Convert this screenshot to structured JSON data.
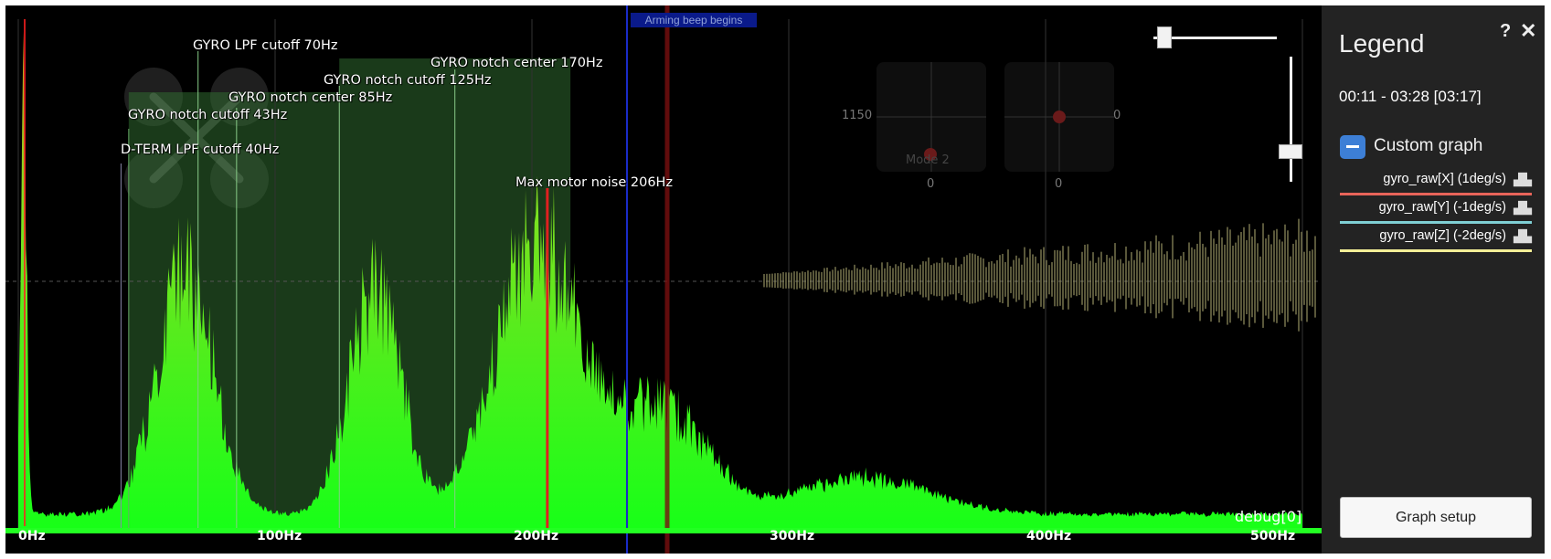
{
  "graph": {
    "annotations": [
      {
        "name": "gyro-lpf-cutoff-label",
        "text": "GYRO LPF cutoff 70Hz"
      },
      {
        "name": "gyro-notch-center-170-label",
        "text": "GYRO notch center 170Hz"
      },
      {
        "name": "gyro-notch-cutoff-125-label",
        "text": "GYRO notch cutoff 125Hz"
      },
      {
        "name": "gyro-notch-center-85-label",
        "text": "GYRO notch center 85Hz"
      },
      {
        "name": "gyro-notch-cutoff-43-label",
        "text": "GYRO notch cutoff 43Hz"
      },
      {
        "name": "dterm-lpf-cutoff-label",
        "text": "D-TERM LPF cutoff 40Hz"
      },
      {
        "name": "max-motor-noise-label",
        "text": "Max motor noise 206Hz"
      }
    ],
    "arming_label": "Arming beep begins",
    "debug_label": "debug[0]",
    "stick_values": {
      "left_top": "1150",
      "right_top": "0",
      "left_bottom": "0",
      "right_bottom": "0",
      "mode_label": "Mode 2"
    }
  },
  "chart_data": {
    "type": "area",
    "x_unit": "Hz",
    "x_ticks": [
      "0Hz",
      "100Hz",
      "200Hz",
      "300Hz",
      "400Hz",
      "500Hz"
    ],
    "xlim": [
      0,
      500
    ],
    "series": [
      {
        "name": "gyro_raw spectrum",
        "color": "#22ff22"
      }
    ],
    "peaks_hz": [
      2,
      65,
      139,
      202,
      250
    ],
    "markers_hz": {
      "dterm_lpf": 40,
      "gyro_notch_cutoff_1": 43,
      "gyro_lpf": 70,
      "gyro_notch_center_1": 85,
      "gyro_notch_cutoff_2": 125,
      "gyro_notch_center_2": 170,
      "max_motor_noise": 206
    },
    "shaded_bands_hz": [
      [
        43,
        125
      ],
      [
        125,
        215
      ]
    ]
  },
  "legend": {
    "title": "Legend",
    "time_range": "00:11 - 03:28 [03:17]",
    "group_name": "Custom graph",
    "series": [
      {
        "label": "gyro_raw[X] (1deg/s)",
        "color": "#e8645a",
        "icon": "spectrum-icon"
      },
      {
        "label": "gyro_raw[Y] (-1deg/s)",
        "color": "#7fcfd4",
        "icon": "spectrum-icon"
      },
      {
        "label": "gyro_raw[Z] (-2deg/s)",
        "color": "#f4ef97",
        "icon": "spectrum-icon"
      }
    ],
    "help_glyph": "?",
    "close_glyph": "✕",
    "setup_button": "Graph setup"
  }
}
